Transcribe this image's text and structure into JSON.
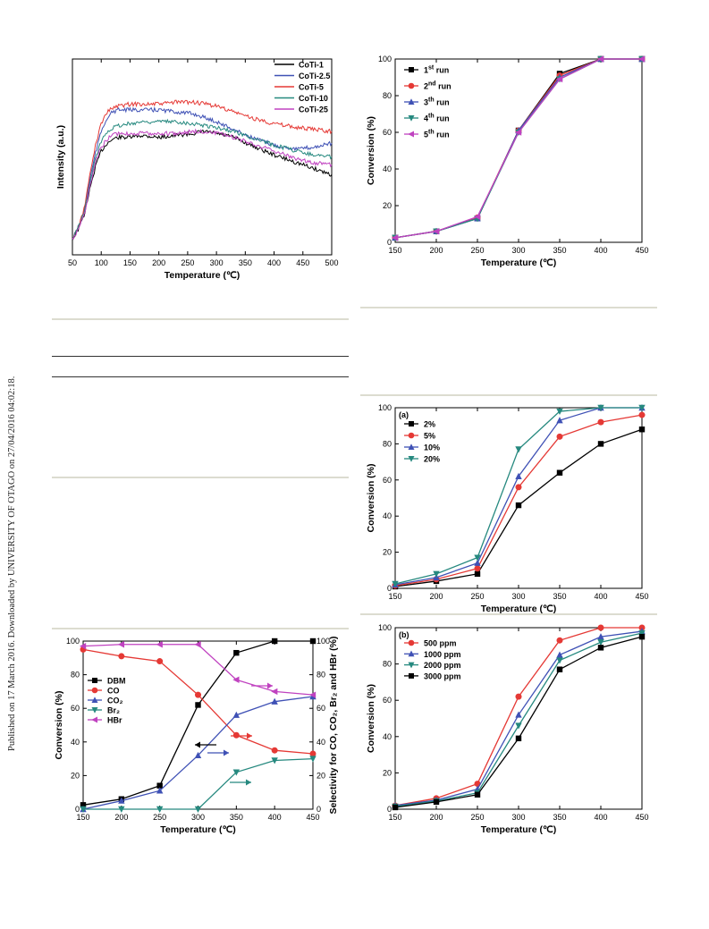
{
  "sidebar_text": "Published on 17 March 2016. Downloaded by UNIVERSITY OF OTAGO on 27/04/2016 04:02:18.",
  "chart_data": [
    {
      "id": "xrd",
      "type": "line",
      "xlabel": "Temperature (℃)",
      "ylabel": "Intensity (a.u.)",
      "xlim": [
        50,
        500
      ],
      "ylim": [
        0,
        100
      ],
      "xticks": [
        50,
        100,
        150,
        200,
        250,
        300,
        350,
        400,
        450,
        500
      ],
      "yticks": [],
      "legend_position": "top-right",
      "series": [
        {
          "name": "CoTi-1",
          "color": "#000000",
          "x": [
            50,
            60,
            70,
            80,
            90,
            100,
            110,
            120,
            130,
            150,
            170,
            200,
            230,
            260,
            280,
            300,
            330,
            360,
            400,
            440,
            470,
            500
          ],
          "values": [
            8,
            13,
            20,
            33,
            45,
            53,
            57,
            59,
            60,
            60,
            61,
            60,
            61,
            62,
            63,
            62,
            60,
            56,
            51,
            47,
            44,
            41
          ]
        },
        {
          "name": "CoTi-2.5",
          "color": "#3f51b5",
          "x": [
            50,
            60,
            70,
            80,
            90,
            100,
            110,
            120,
            130,
            150,
            170,
            200,
            230,
            260,
            280,
            300,
            330,
            360,
            400,
            440,
            470,
            500
          ],
          "values": [
            8,
            14,
            22,
            38,
            52,
            63,
            70,
            73,
            74,
            74,
            74,
            74,
            73,
            72,
            70,
            68,
            64,
            60,
            56,
            54,
            55,
            57
          ]
        },
        {
          "name": "CoTi-5",
          "color": "#e53935",
          "x": [
            50,
            60,
            70,
            80,
            90,
            100,
            110,
            120,
            130,
            150,
            170,
            200,
            230,
            260,
            280,
            300,
            330,
            360,
            400,
            440,
            470,
            500
          ],
          "values": [
            8,
            14,
            23,
            40,
            56,
            67,
            73,
            75,
            76,
            77,
            77,
            77,
            78,
            78,
            77,
            76,
            73,
            70,
            67,
            65,
            64,
            63
          ]
        },
        {
          "name": "CoTi-10",
          "color": "#26897f",
          "x": [
            50,
            60,
            70,
            80,
            90,
            100,
            110,
            120,
            130,
            150,
            170,
            200,
            230,
            260,
            280,
            300,
            330,
            360,
            400,
            440,
            470,
            500
          ],
          "values": [
            8,
            14,
            21,
            36,
            49,
            58,
            63,
            65,
            66,
            67,
            68,
            68,
            68,
            67,
            66,
            65,
            63,
            60,
            56,
            53,
            51,
            50
          ]
        },
        {
          "name": "CoTi-25",
          "color": "#c042c0",
          "x": [
            50,
            60,
            70,
            80,
            90,
            100,
            110,
            120,
            130,
            150,
            170,
            200,
            230,
            260,
            280,
            300,
            330,
            360,
            400,
            440,
            470,
            500
          ],
          "values": [
            8,
            13,
            20,
            34,
            47,
            55,
            59,
            61,
            62,
            62,
            62,
            62,
            62,
            63,
            63,
            62,
            60,
            57,
            53,
            49,
            47,
            46
          ]
        }
      ]
    },
    {
      "id": "cycles",
      "type": "line",
      "xlabel": "Temperature (℃)",
      "ylabel": "Conversion (%)",
      "xlim": [
        150,
        450
      ],
      "ylim": [
        0,
        100
      ],
      "xticks": [
        150,
        200,
        250,
        300,
        350,
        400,
        450
      ],
      "yticks": [
        0,
        20,
        40,
        60,
        80,
        100
      ],
      "legend_position": "top-left",
      "x": [
        150,
        200,
        250,
        300,
        350,
        400,
        450
      ],
      "series": [
        {
          "name": "1",
          "sup": "st",
          "suffix": " run",
          "color": "#000000",
          "marker": "square",
          "values": [
            2.5,
            6,
            13,
            61,
            92,
            100,
            100
          ]
        },
        {
          "name": "2",
          "sup": "nd",
          "suffix": " run",
          "color": "#e53935",
          "marker": "circle",
          "values": [
            2.5,
            6,
            13.5,
            61,
            91,
            100,
            100
          ]
        },
        {
          "name": "3",
          "sup": "th",
          "suffix": " run",
          "color": "#3f51b5",
          "marker": "triangle-up",
          "values": [
            2.5,
            6,
            13,
            61,
            90,
            100,
            100
          ]
        },
        {
          "name": "4",
          "sup": "th",
          "suffix": " run",
          "color": "#26897f",
          "marker": "triangle-down",
          "values": [
            2.5,
            6,
            13,
            60,
            89,
            100,
            100
          ]
        },
        {
          "name": "5",
          "sup": "th",
          "suffix": " run",
          "color": "#c042c0",
          "marker": "triangle-left",
          "values": [
            2.5,
            6,
            14,
            60,
            89,
            100,
            100
          ]
        }
      ]
    },
    {
      "id": "water",
      "type": "line",
      "panel_label": "(a)",
      "xlabel": "Temperature (℃)",
      "ylabel": "Conversion (%)",
      "xlim": [
        150,
        450
      ],
      "ylim": [
        0,
        100
      ],
      "xticks": [
        150,
        200,
        250,
        300,
        350,
        400,
        450
      ],
      "yticks": [
        0,
        20,
        40,
        60,
        80,
        100
      ],
      "legend_position": "top-left",
      "x": [
        150,
        200,
        250,
        300,
        350,
        400,
        450
      ],
      "series": [
        {
          "name": "2%",
          "color": "#000000",
          "marker": "square",
          "values": [
            1,
            4,
            8,
            46,
            64,
            80,
            88
          ]
        },
        {
          "name": "5%",
          "color": "#e53935",
          "marker": "circle",
          "values": [
            1.5,
            5,
            11,
            56,
            84,
            92,
            96
          ]
        },
        {
          "name": "10%",
          "color": "#3f51b5",
          "marker": "triangle-up",
          "values": [
            2,
            6,
            14,
            62,
            93,
            100,
            100
          ]
        },
        {
          "name": "20%",
          "color": "#26897f",
          "marker": "triangle-down",
          "values": [
            2.5,
            8,
            17,
            77,
            98,
            100,
            100
          ]
        }
      ]
    },
    {
      "id": "selectivity",
      "type": "line",
      "xlabel": "Temperature (℃)",
      "ylabel": "Conversion (%)",
      "y2label": "Selectivity for CO, CO₂, Br₂ and HBr (%)",
      "xlim": [
        150,
        450
      ],
      "ylim": [
        0,
        100
      ],
      "y2lim": [
        0,
        100
      ],
      "xticks": [
        150,
        200,
        250,
        300,
        350,
        400,
        450
      ],
      "yticks": [
        0,
        20,
        40,
        60,
        80,
        100
      ],
      "y2ticks": [
        0,
        20,
        40,
        60,
        80,
        100
      ],
      "legend_position": "left",
      "x": [
        150,
        200,
        250,
        300,
        350,
        400,
        450
      ],
      "series": [
        {
          "name": "DBM",
          "color": "#000000",
          "marker": "square",
          "axis": "left",
          "values": [
            2.5,
            6,
            14,
            62,
            93,
            100,
            100
          ]
        },
        {
          "name": "CO",
          "color": "#e53935",
          "marker": "circle",
          "axis": "right",
          "values": [
            95,
            91,
            88,
            68,
            44,
            35,
            33
          ]
        },
        {
          "name": "CO₂",
          "color": "#3f51b5",
          "marker": "triangle-up",
          "axis": "right",
          "values": [
            0,
            5,
            11,
            32,
            56,
            64,
            67
          ]
        },
        {
          "name": "Br₂",
          "color": "#26897f",
          "marker": "triangle-down",
          "axis": "right",
          "values": [
            0,
            0,
            0,
            0,
            22,
            29,
            30
          ]
        },
        {
          "name": "HBr",
          "color": "#c042c0",
          "marker": "triangle-left",
          "axis": "right",
          "values": [
            97,
            98,
            98,
            98,
            77,
            70,
            68
          ]
        }
      ]
    },
    {
      "id": "concentration",
      "type": "line",
      "panel_label": "(b)",
      "xlabel": "Temperature (℃)",
      "ylabel": "Conversion (%)",
      "xlim": [
        150,
        450
      ],
      "ylim": [
        0,
        100
      ],
      "xticks": [
        150,
        200,
        250,
        300,
        350,
        400,
        450
      ],
      "yticks": [
        0,
        20,
        40,
        60,
        80,
        100
      ],
      "legend_position": "top-left",
      "x": [
        150,
        200,
        250,
        300,
        350,
        400,
        450
      ],
      "series": [
        {
          "name": "500 ppm",
          "color": "#e53935",
          "marker": "circle",
          "values": [
            2,
            6,
            14,
            62,
            93,
            100,
            100
          ]
        },
        {
          "name": "1000 ppm",
          "color": "#3f51b5",
          "marker": "triangle-up",
          "values": [
            2,
            5,
            11,
            52,
            85,
            95,
            98
          ]
        },
        {
          "name": "2000 ppm",
          "color": "#26897f",
          "marker": "triangle-down",
          "values": [
            1.5,
            4.5,
            9,
            46,
            82,
            92,
            97
          ]
        },
        {
          "name": "3000 ppm",
          "color": "#000000",
          "marker": "square",
          "values": [
            1,
            4,
            8,
            39,
            77,
            89,
            95
          ]
        }
      ]
    }
  ]
}
